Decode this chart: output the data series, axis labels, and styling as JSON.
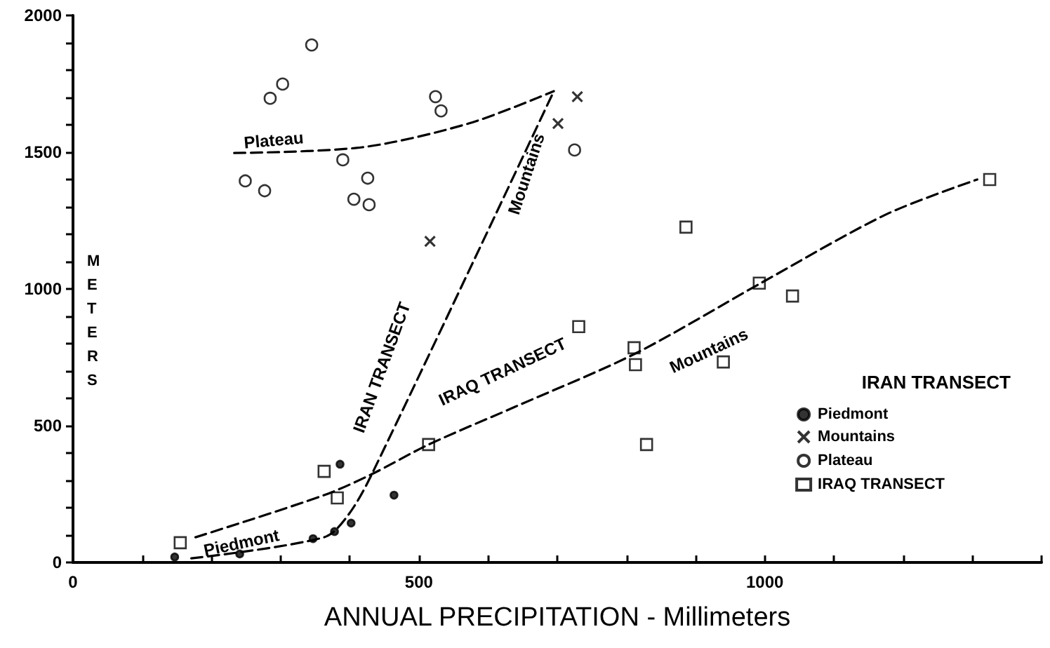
{
  "chart_data": {
    "type": "scatter",
    "xlabel": "ANNUAL PRECIPITATION - Millimeters",
    "ylabel": "METERS",
    "legend_title": "IRAN TRANSECT",
    "legend": "right",
    "grid": false,
    "xlim": [
      0,
      1400
    ],
    "ylim": [
      0,
      2000
    ],
    "xticks": [
      0,
      {
        "value": 100,
        "label": null
      },
      {
        "value": 200,
        "label": null
      },
      {
        "value": 300,
        "label": null
      },
      {
        "value": 400,
        "label": null
      },
      500,
      {
        "value": 600,
        "label": null
      },
      {
        "value": 700,
        "label": null
      },
      {
        "value": 800,
        "label": null
      },
      {
        "value": 900,
        "label": null
      },
      1000,
      {
        "value": 1100,
        "label": null
      },
      {
        "value": 1200,
        "label": null
      },
      {
        "value": 1300,
        "label": null
      },
      {
        "value": 1400,
        "label": null
      }
    ],
    "yticks": [
      0,
      {
        "value": 100,
        "label": null
      },
      {
        "value": 200,
        "label": null
      },
      {
        "value": 300,
        "label": null
      },
      {
        "value": 400,
        "label": null
      },
      500,
      {
        "value": 600,
        "label": null
      },
      {
        "value": 700,
        "label": null
      },
      {
        "value": 800,
        "label": null
      },
      {
        "value": 900,
        "label": null
      },
      1000,
      {
        "value": 1100,
        "label": null
      },
      {
        "value": 1200,
        "label": null
      },
      {
        "value": 1300,
        "label": null
      },
      {
        "value": 1400,
        "label": null
      },
      1500,
      {
        "value": 1600,
        "label": null
      },
      {
        "value": 1700,
        "label": null
      },
      {
        "value": 1800,
        "label": null
      },
      {
        "value": 1900,
        "label": null
      },
      2000
    ],
    "series": [
      {
        "name": "Piedmont",
        "marker": "circle",
        "color": "#000000",
        "x": [
          147,
          241,
          347,
          378,
          402,
          386,
          464
        ],
        "values": [
          20,
          31,
          87,
          113,
          144,
          359,
          246
        ]
      },
      {
        "name": "Mountains",
        "marker": "cross",
        "color": "#000000",
        "x": [
          516,
          729,
          701
        ],
        "values": [
          1174,
          1703,
          1605
        ]
      },
      {
        "name": "Plateau",
        "marker": "circle_open",
        "color": "#000000",
        "x": [
          345,
          285,
          303,
          249,
          277,
          390,
          426,
          406,
          428,
          524,
          532,
          725
        ],
        "values": [
          1892,
          1697,
          1749,
          1395,
          1359,
          1472,
          1405,
          1328,
          1308,
          1703,
          1651,
          1508
        ]
      },
      {
        "name": "IRAQ TRANSECT",
        "marker": "square_open",
        "color": "#000000",
        "x": [
          155,
          363,
          382,
          514,
          731,
          811,
          813,
          829,
          886,
          940,
          992,
          1040,
          1325
        ],
        "values": [
          72,
          333,
          236,
          431,
          862,
          785,
          723,
          431,
          1226,
          733,
          1021,
          974,
          1400
        ]
      },
      {
        "type": "line",
        "line_style": "dashed",
        "color": "#000000",
        "x": [
          233,
          418,
          572,
          695
        ],
        "values": [
          1497,
          1518,
          1605,
          1723
        ]
      },
      {
        "type": "line",
        "line_style": "dashed",
        "color": "#000000",
        "x": [
          171,
          363,
          398,
          432,
          695
        ],
        "values": [
          15,
          92,
          174,
          323,
          1723
        ]
      },
      {
        "type": "line",
        "line_style": "dashed",
        "color": "#000000",
        "x": [
          177,
          363,
          432,
          514,
          639,
          813,
          994,
          1175,
          1307
        ],
        "values": [
          92,
          246,
          323,
          431,
          569,
          764,
          1021,
          1272,
          1400
        ]
      }
    ],
    "annotations": [
      "Plateau",
      "IRAN TRANSECT",
      "Mountains",
      "IRAQ TRANSECT",
      "Mountains",
      "Piedmont"
    ]
  }
}
